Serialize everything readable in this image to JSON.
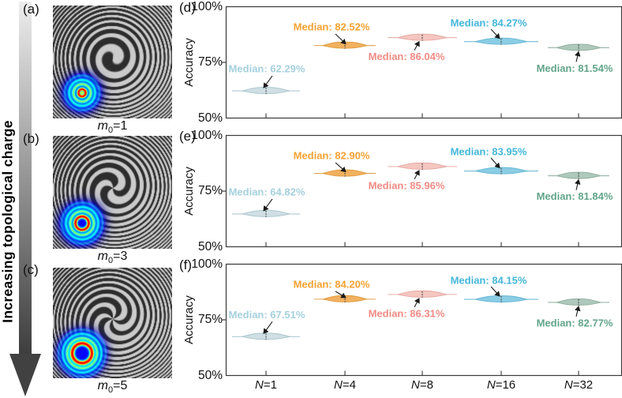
{
  "left_column": {
    "arrow_label": "Increasing topological charge",
    "panels": [
      {
        "letter": "(a)",
        "m_var": "m",
        "m_sub": "0",
        "m_eq": "=1",
        "topological_charge": 1
      },
      {
        "letter": "(b)",
        "m_var": "m",
        "m_sub": "0",
        "m_eq": "=3",
        "topological_charge": 3
      },
      {
        "letter": "(c)",
        "m_var": "m",
        "m_sub": "0",
        "m_eq": "=5",
        "topological_charge": 5
      }
    ]
  },
  "right_column": {
    "ylabel": "Accuracy",
    "ytick_labels": [
      "100%",
      "75%",
      "50%"
    ],
    "xticks": [
      {
        "var": "N",
        "eq": "=1"
      },
      {
        "var": "N",
        "eq": "=4"
      },
      {
        "var": "N",
        "eq": "=8"
      },
      {
        "var": "N",
        "eq": "=16"
      },
      {
        "var": "N",
        "eq": "=32"
      }
    ],
    "panels": [
      {
        "letter": "(d)"
      },
      {
        "letter": "(e)"
      },
      {
        "letter": "(f)"
      }
    ]
  },
  "colors": {
    "violin_fills": [
      "#cfdfe4",
      "#f2b160",
      "#f5c6c0",
      "#8bcde4",
      "#aec9bb"
    ],
    "violin_strokes": [
      "#a8c4cc",
      "#dd9a3c",
      "#e4a7a0",
      "#62b5d2",
      "#8cad9d"
    ],
    "median_label_colors": [
      "#a5d0dd",
      "#f5a233",
      "#f18b84",
      "#45b7da",
      "#63a58c"
    ],
    "axis_color": "#3a3a3a",
    "arrow_color": "#1a1a1a",
    "median_dash_color": "#555555",
    "pattern_light": "#cbcbcb",
    "pattern_dark": "#2d2d2d"
  },
  "chart_data": [
    {
      "type": "violin",
      "panel": "(d)",
      "condition": "m0=1",
      "categories": [
        "N=1",
        "N=4",
        "N=8",
        "N=16",
        "N=32"
      ],
      "medians": [
        62.29,
        82.52,
        86.04,
        84.27,
        81.54
      ],
      "annotations": [
        "Median: 62.29%",
        "Median: 82.52%",
        "Median: 86.04%",
        "Median: 84.27%",
        "Median: 81.54%"
      ],
      "ylabel": "Accuracy",
      "ylim": [
        50,
        100
      ],
      "yticks": [
        100,
        75,
        50
      ]
    },
    {
      "type": "violin",
      "panel": "(e)",
      "condition": "m0=3",
      "categories": [
        "N=1",
        "N=4",
        "N=8",
        "N=16",
        "N=32"
      ],
      "medians": [
        64.82,
        82.9,
        85.96,
        83.95,
        81.84
      ],
      "annotations": [
        "Median: 64.82%",
        "Median: 82.90%",
        "Median: 85.96%",
        "Median: 83.95%",
        "Median: 81.84%"
      ],
      "ylabel": "Accuracy",
      "ylim": [
        50,
        100
      ],
      "yticks": [
        100,
        75,
        50
      ]
    },
    {
      "type": "violin",
      "panel": "(f)",
      "condition": "m0=5",
      "categories": [
        "N=1",
        "N=4",
        "N=8",
        "N=16",
        "N=32"
      ],
      "medians": [
        67.51,
        84.2,
        86.31,
        84.15,
        82.77
      ],
      "annotations": [
        "Median: 67.51%",
        "Median: 84.20%",
        "Median: 86.31%",
        "Median: 84.15%",
        "Median: 82.77%"
      ],
      "ylabel": "Accuracy",
      "ylim": [
        50,
        100
      ],
      "yticks": [
        100,
        75,
        50
      ]
    }
  ]
}
